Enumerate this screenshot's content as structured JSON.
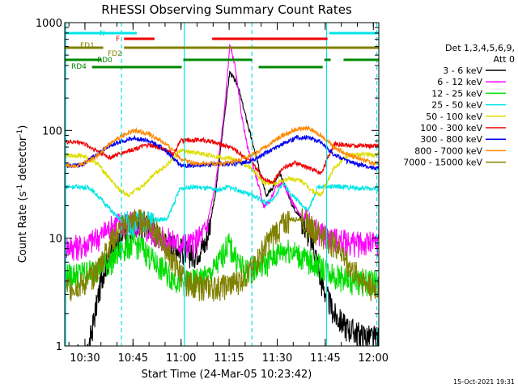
{
  "chart_data": {
    "type": "line",
    "title": "RHESSI Observing Summary Count Rates",
    "xlabel": "Start Time (24-Mar-05 10:23:42)",
    "ylabel_main": "Count Rate (s",
    "ylabel_sup1": "-1",
    "ylabel_mid": " detector",
    "ylabel_sup2": "-1",
    "ylabel_end": ")",
    "footer_date": "15-Oct-2021 19:31",
    "y_scale": "log",
    "ylim": [
      1,
      1000
    ],
    "xlim_minutes": [
      0,
      98
    ],
    "x_ticks": [
      {
        "label": "10:30",
        "t": 6.3
      },
      {
        "label": "10:45",
        "t": 21.3
      },
      {
        "label": "11:00",
        "t": 36.3
      },
      {
        "label": "11:15",
        "t": 51.3
      },
      {
        "label": "11:30",
        "t": 66.3
      },
      {
        "label": "11:45",
        "t": 81.3
      },
      {
        "label": "12:00",
        "t": 96.3
      }
    ],
    "y_ticks": [
      {
        "label": "1",
        "v": 1
      },
      {
        "label": "10",
        "v": 10
      },
      {
        "label": "100",
        "v": 100
      },
      {
        "label": "1000",
        "v": 1000
      }
    ],
    "legend_header": [
      "Det 1,3,4,5,6,9,",
      "Att 0"
    ],
    "series": [
      {
        "name": "3 - 6 keV",
        "color": "#000000",
        "points": [
          [
            7,
            0.8
          ],
          [
            10,
            2.5
          ],
          [
            12,
            5
          ],
          [
            15,
            8
          ],
          [
            20,
            12
          ],
          [
            25,
            14
          ],
          [
            30,
            10
          ],
          [
            36,
            8
          ],
          [
            40,
            7
          ],
          [
            44,
            9
          ],
          [
            47,
            25
          ],
          [
            50,
            150
          ],
          [
            51.5,
            350
          ],
          [
            54,
            260
          ],
          [
            58,
            90
          ],
          [
            61,
            40
          ],
          [
            63,
            25
          ],
          [
            65,
            30
          ],
          [
            67,
            40
          ],
          [
            69,
            30
          ],
          [
            71,
            20
          ],
          [
            74,
            15
          ],
          [
            78,
            8
          ],
          [
            80,
            4
          ],
          [
            84,
            2
          ],
          [
            88,
            1.5
          ],
          [
            92,
            1.3
          ],
          [
            96,
            1.2
          ]
        ]
      },
      {
        "name": "6 - 12 keV",
        "color": "#ff00ff",
        "points": [
          [
            0,
            8.5
          ],
          [
            5,
            8.5
          ],
          [
            10,
            10
          ],
          [
            16,
            14
          ],
          [
            21,
            14
          ],
          [
            26,
            12
          ],
          [
            31,
            10
          ],
          [
            36,
            9
          ],
          [
            40,
            9
          ],
          [
            44,
            12
          ],
          [
            47,
            30
          ],
          [
            50,
            170
          ],
          [
            51.5,
            620
          ],
          [
            53,
            420
          ],
          [
            55,
            150
          ],
          [
            57,
            70
          ],
          [
            60,
            35
          ],
          [
            62,
            20
          ],
          [
            64,
            22
          ],
          [
            66,
            30
          ],
          [
            68,
            33
          ],
          [
            70,
            25
          ],
          [
            73,
            17
          ],
          [
            77,
            13
          ],
          [
            80,
            11
          ],
          [
            86,
            9.5
          ],
          [
            92,
            9
          ],
          [
            96,
            9
          ]
        ]
      },
      {
        "name": "12 - 25 keV",
        "color": "#00dd00",
        "points": [
          [
            0,
            4.5
          ],
          [
            8,
            5
          ],
          [
            14,
            6
          ],
          [
            18,
            8
          ],
          [
            21,
            9
          ],
          [
            24,
            8.5
          ],
          [
            28,
            6
          ],
          [
            33,
            4.5
          ],
          [
            36,
            4
          ],
          [
            40,
            4
          ],
          [
            45,
            4.5
          ],
          [
            48,
            6
          ],
          [
            51,
            9
          ],
          [
            53,
            7
          ],
          [
            56,
            5
          ],
          [
            60,
            5.5
          ],
          [
            63,
            6
          ],
          [
            67,
            7.5
          ],
          [
            70,
            8
          ],
          [
            73,
            7
          ],
          [
            77,
            6
          ],
          [
            80,
            5.5
          ],
          [
            85,
            4.5
          ],
          [
            90,
            4
          ],
          [
            96,
            4
          ]
        ]
      },
      {
        "name": "25 - 50 keV",
        "color": "#00e5e5",
        "points": [
          [
            0,
            30
          ],
          [
            5,
            30
          ],
          [
            8,
            29
          ],
          [
            12,
            22
          ],
          [
            16,
            16
          ],
          [
            20,
            14
          ],
          [
            24,
            14
          ],
          [
            28,
            15
          ],
          [
            32,
            15
          ],
          [
            36,
            29
          ],
          [
            40,
            30
          ],
          [
            44,
            29
          ],
          [
            48,
            28
          ],
          [
            51,
            30
          ],
          [
            54,
            28
          ],
          [
            58,
            25
          ],
          [
            60,
            24
          ],
          [
            63,
            21
          ],
          [
            66,
            25
          ],
          [
            68,
            33
          ],
          [
            70,
            27
          ],
          [
            73,
            22
          ],
          [
            76,
            18
          ],
          [
            79,
            30
          ],
          [
            82,
            30
          ],
          [
            87,
            30
          ],
          [
            92,
            29
          ],
          [
            96,
            29
          ]
        ]
      },
      {
        "name": "50 - 100 keV",
        "color": "#dddd00",
        "points": [
          [
            0,
            58
          ],
          [
            5,
            59
          ],
          [
            10,
            50
          ],
          [
            14,
            36
          ],
          [
            17,
            28
          ],
          [
            20,
            25
          ],
          [
            24,
            30
          ],
          [
            28,
            40
          ],
          [
            32,
            48
          ],
          [
            36,
            65
          ],
          [
            40,
            62
          ],
          [
            44,
            60
          ],
          [
            48,
            57
          ],
          [
            52,
            55
          ],
          [
            55,
            50
          ],
          [
            58,
            45
          ],
          [
            62,
            33
          ],
          [
            66,
            32
          ],
          [
            70,
            36
          ],
          [
            74,
            34
          ],
          [
            77,
            28
          ],
          [
            80,
            25
          ],
          [
            84,
            45
          ],
          [
            88,
            58
          ],
          [
            92,
            60
          ],
          [
            96,
            60
          ]
        ]
      },
      {
        "name": "100 - 300 keV",
        "color": "#ee0000",
        "points": [
          [
            0,
            78
          ],
          [
            5,
            78
          ],
          [
            10,
            65
          ],
          [
            14,
            56
          ],
          [
            18,
            62
          ],
          [
            22,
            68
          ],
          [
            26,
            73
          ],
          [
            30,
            69
          ],
          [
            34,
            60
          ],
          [
            36,
            80
          ],
          [
            40,
            82
          ],
          [
            44,
            81
          ],
          [
            48,
            75
          ],
          [
            52,
            70
          ],
          [
            55,
            60
          ],
          [
            58,
            52
          ],
          [
            62,
            36
          ],
          [
            65,
            33
          ],
          [
            68,
            45
          ],
          [
            72,
            50
          ],
          [
            76,
            45
          ],
          [
            80,
            40
          ],
          [
            84,
            75
          ],
          [
            88,
            73
          ],
          [
            92,
            72
          ],
          [
            96,
            72
          ]
        ]
      },
      {
        "name": "300 - 800 keV",
        "color": "#0000ee",
        "points": [
          [
            0,
            47
          ],
          [
            5,
            47
          ],
          [
            10,
            60
          ],
          [
            14,
            72
          ],
          [
            18,
            80
          ],
          [
            22,
            85
          ],
          [
            26,
            80
          ],
          [
            30,
            70
          ],
          [
            34,
            55
          ],
          [
            36,
            48
          ],
          [
            40,
            47
          ],
          [
            44,
            48
          ],
          [
            48,
            49
          ],
          [
            52,
            49
          ],
          [
            56,
            50
          ],
          [
            60,
            55
          ],
          [
            64,
            65
          ],
          [
            68,
            75
          ],
          [
            72,
            85
          ],
          [
            76,
            87
          ],
          [
            80,
            78
          ],
          [
            84,
            60
          ],
          [
            88,
            52
          ],
          [
            92,
            48
          ],
          [
            96,
            45
          ]
        ]
      },
      {
        "name": "800 - 7000 keV",
        "color": "#ff8800",
        "points": [
          [
            0,
            47
          ],
          [
            5,
            48
          ],
          [
            10,
            58
          ],
          [
            14,
            75
          ],
          [
            18,
            90
          ],
          [
            22,
            100
          ],
          [
            26,
            93
          ],
          [
            30,
            80
          ],
          [
            34,
            65
          ],
          [
            36,
            55
          ],
          [
            40,
            50
          ],
          [
            44,
            49
          ],
          [
            48,
            49
          ],
          [
            52,
            50
          ],
          [
            56,
            55
          ],
          [
            60,
            62
          ],
          [
            64,
            75
          ],
          [
            68,
            90
          ],
          [
            72,
            102
          ],
          [
            76,
            105
          ],
          [
            80,
            90
          ],
          [
            84,
            70
          ],
          [
            88,
            60
          ],
          [
            92,
            55
          ],
          [
            96,
            50
          ]
        ]
      },
      {
        "name": "7000 - 15000 keV",
        "color": "#808000",
        "points": [
          [
            0,
            3.5
          ],
          [
            6,
            3.8
          ],
          [
            10,
            5
          ],
          [
            14,
            9
          ],
          [
            18,
            13
          ],
          [
            22,
            15
          ],
          [
            26,
            14
          ],
          [
            30,
            10
          ],
          [
            34,
            6
          ],
          [
            38,
            4
          ],
          [
            42,
            3.6
          ],
          [
            46,
            3.5
          ],
          [
            50,
            3.6
          ],
          [
            54,
            4
          ],
          [
            58,
            5
          ],
          [
            62,
            8
          ],
          [
            66,
            12
          ],
          [
            70,
            15
          ],
          [
            74,
            15
          ],
          [
            78,
            12
          ],
          [
            82,
            10
          ],
          [
            86,
            8
          ],
          [
            90,
            5
          ],
          [
            96,
            3.5
          ]
        ]
      }
    ],
    "bars": [
      {
        "label": "N",
        "color": "#00e5e5",
        "segments": [
          [
            0,
            22.5
          ],
          [
            82.5,
            98
          ]
        ]
      },
      {
        "label": "F",
        "color": "#ee0000",
        "segments": [
          [
            18.5,
            28
          ],
          [
            46,
            82
          ]
        ]
      },
      {
        "label": "FD1",
        "color": "#808000",
        "segments": [
          [
            0,
            12
          ]
        ]
      },
      {
        "label": "FD2",
        "color": "#808000",
        "segments": [
          [
            18.5,
            98
          ]
        ]
      },
      {
        "label": "RD0",
        "color": "#008800",
        "segments": [
          [
            0,
            11.5
          ],
          [
            37,
            58.5
          ],
          [
            81,
            83
          ],
          [
            87,
            98
          ]
        ]
      },
      {
        "label": "RD4",
        "color": "#008800",
        "segments": [
          [
            8.5,
            36.5
          ],
          [
            60.5,
            80.5
          ]
        ]
      }
    ],
    "vlines": [
      {
        "t": 0.3,
        "color": "#00e5e5",
        "style": "solid"
      },
      {
        "t": 17.7,
        "color": "#00e5e5",
        "style": "dashed"
      },
      {
        "t": 37.3,
        "color": "#00e5e5",
        "style": "solid"
      },
      {
        "t": 58.4,
        "color": "#00e5e5",
        "style": "dashed"
      },
      {
        "t": 81.7,
        "color": "#00e5e5",
        "style": "solid"
      },
      {
        "t": 97.4,
        "color": "#00e5e5",
        "style": "dashed"
      }
    ]
  }
}
